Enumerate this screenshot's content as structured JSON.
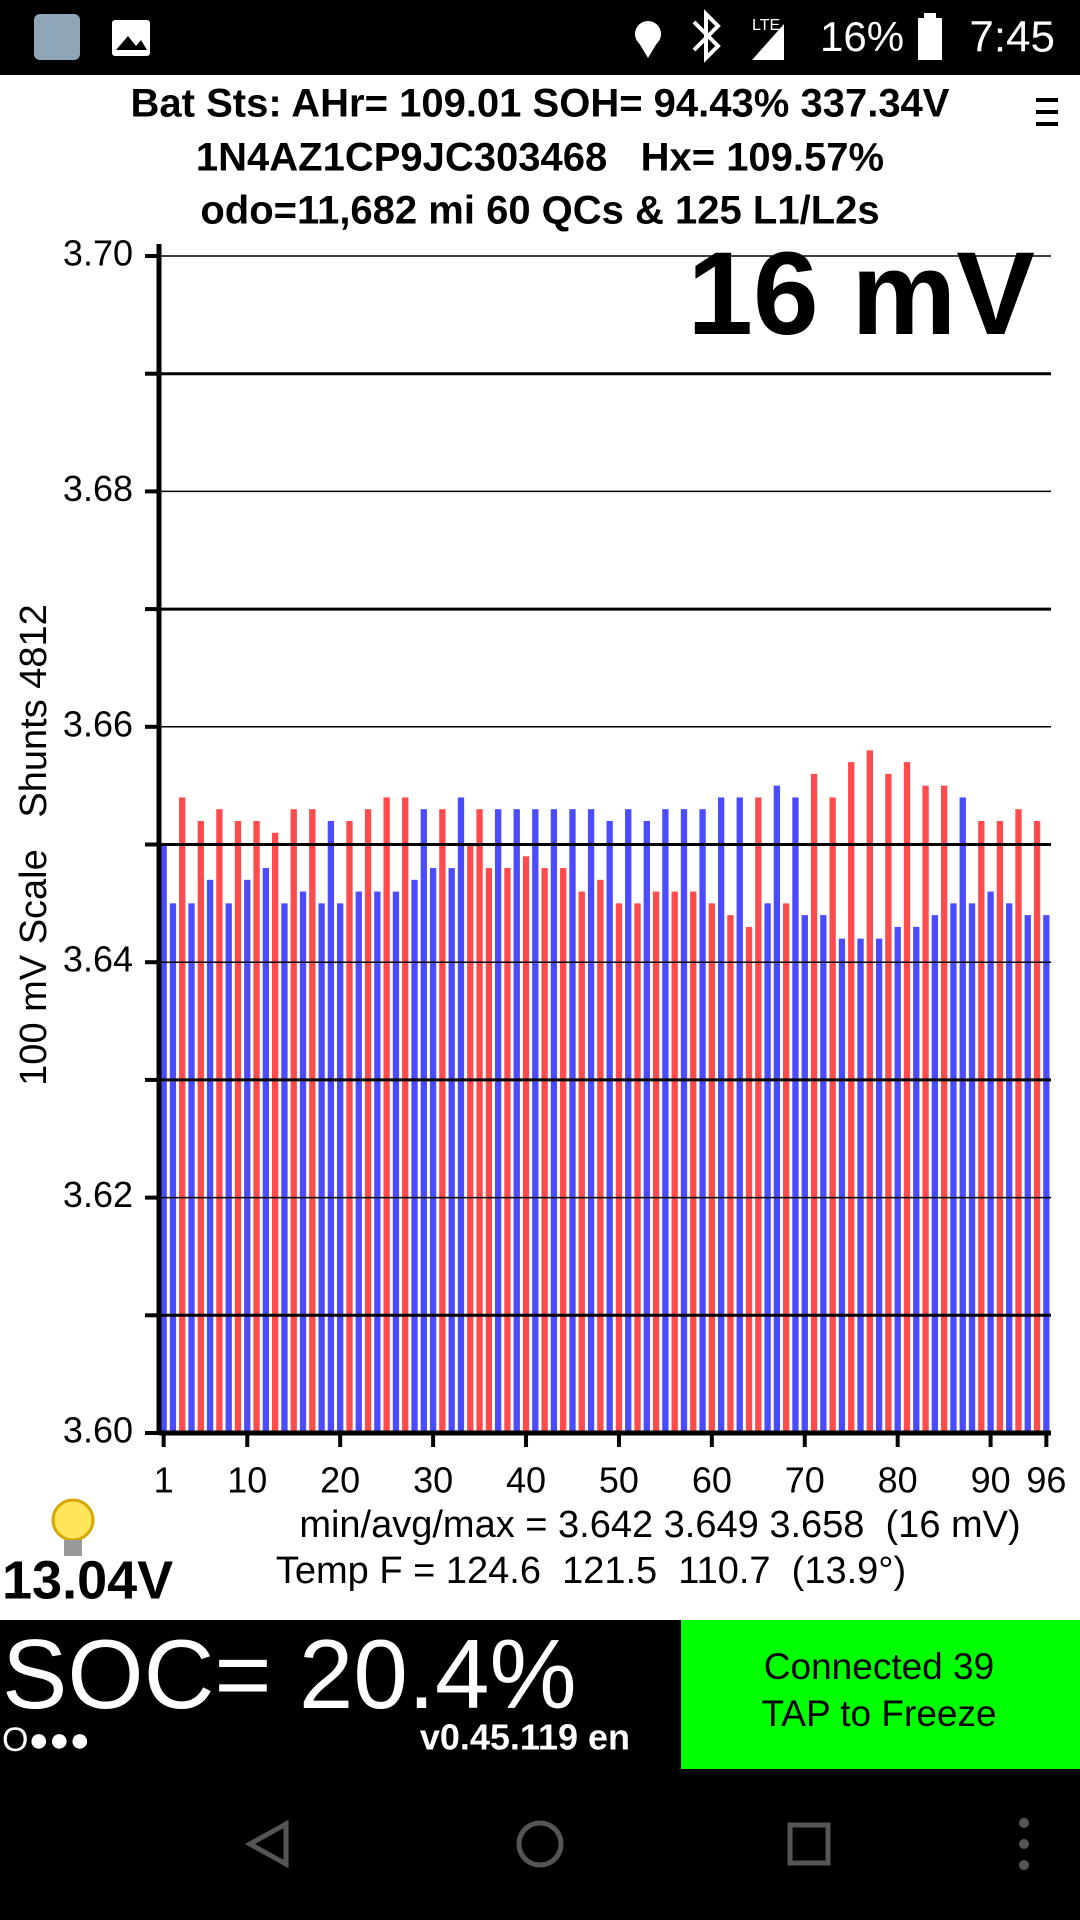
{
  "status_bar": {
    "network": "LTE",
    "battery": "16%",
    "time": "7:45"
  },
  "header": {
    "line1": "Bat Sts: AHr= 109.01 SOH= 94.43% 337.34V",
    "line2": "1N4AZ1CP9JC303468   Hx= 109.57%",
    "line3": "odo=11,682 mi 60 QCs & 125 L1/L2s"
  },
  "chart_data": {
    "type": "bar",
    "annotation": "16 mV",
    "y_label": "100 mV Scale   Shunts 4812",
    "categories": [
      "1",
      null,
      null,
      null,
      null,
      null,
      null,
      null,
      null,
      "10",
      null,
      null,
      null,
      null,
      null,
      null,
      null,
      null,
      null,
      "20",
      null,
      null,
      null,
      null,
      null,
      null,
      null,
      null,
      null,
      "30",
      null,
      null,
      null,
      null,
      null,
      null,
      null,
      null,
      null,
      "40",
      null,
      null,
      null,
      null,
      null,
      null,
      null,
      null,
      null,
      "50",
      null,
      null,
      null,
      null,
      null,
      null,
      null,
      null,
      null,
      "60",
      null,
      null,
      null,
      null,
      null,
      null,
      null,
      null,
      null,
      "70",
      null,
      null,
      null,
      null,
      null,
      null,
      null,
      null,
      null,
      "80",
      null,
      null,
      null,
      null,
      null,
      null,
      null,
      null,
      null,
      "90",
      null,
      null,
      null,
      null,
      null,
      "96"
    ],
    "values": [
      3.65,
      3.645,
      3.654,
      3.645,
      3.652,
      3.647,
      3.653,
      3.645,
      3.652,
      3.647,
      3.652,
      3.648,
      3.651,
      3.645,
      3.653,
      3.646,
      3.653,
      3.645,
      3.652,
      3.645,
      3.652,
      3.646,
      3.653,
      3.646,
      3.654,
      3.646,
      3.654,
      3.647,
      3.653,
      3.648,
      3.653,
      3.648,
      3.654,
      3.65,
      3.653,
      3.648,
      3.653,
      3.648,
      3.653,
      3.649,
      3.653,
      3.648,
      3.653,
      3.648,
      3.653,
      3.646,
      3.653,
      3.647,
      3.652,
      3.645,
      3.653,
      3.645,
      3.652,
      3.646,
      3.653,
      3.646,
      3.653,
      3.646,
      3.653,
      3.645,
      3.654,
      3.644,
      3.654,
      3.643,
      3.654,
      3.645,
      3.655,
      3.645,
      3.654,
      3.644,
      3.656,
      3.644,
      3.654,
      3.642,
      3.657,
      3.642,
      3.658,
      3.642,
      3.656,
      3.643,
      3.657,
      3.643,
      3.655,
      3.644,
      3.655,
      3.645,
      3.654,
      3.645,
      3.652,
      3.646,
      3.652,
      3.645,
      3.653,
      3.644,
      3.652,
      3.644
    ],
    "colors": [
      "#4b4bff",
      "#4b4bff",
      "#ff4b4b",
      "#4b4bff",
      "#ff4b4b",
      "#4b4bff",
      "#ff4b4b",
      "#4b4bff",
      "#ff4b4b",
      "#4b4bff",
      "#ff4b4b",
      "#4b4bff",
      "#ff4b4b",
      "#4b4bff",
      "#ff4b4b",
      "#4b4bff",
      "#ff4b4b",
      "#4b4bff",
      "#4b4bff",
      "#4b4bff",
      "#ff4b4b",
      "#4b4bff",
      "#ff4b4b",
      "#4b4bff",
      "#ff4b4b",
      "#4b4bff",
      "#ff4b4b",
      "#4b4bff",
      "#4b4bff",
      "#4b4bff",
      "#ff4b4b",
      "#4b4bff",
      "#4b4bff",
      "#ff4b4b",
      "#ff4b4b",
      "#ff4b4b",
      "#4b4bff",
      "#ff4b4b",
      "#4b4bff",
      "#ff4b4b",
      "#4b4bff",
      "#ff4b4b",
      "#4b4bff",
      "#ff4b4b",
      "#4b4bff",
      "#ff4b4b",
      "#4b4bff",
      "#ff4b4b",
      "#4b4bff",
      "#ff4b4b",
      "#4b4bff",
      "#ff4b4b",
      "#4b4bff",
      "#ff4b4b",
      "#4b4bff",
      "#ff4b4b",
      "#4b4bff",
      "#ff4b4b",
      "#4b4bff",
      "#ff4b4b",
      "#4b4bff",
      "#ff4b4b",
      "#4b4bff",
      "#ff4b4b",
      "#ff4b4b",
      "#4b4bff",
      "#4b4bff",
      "#ff4b4b",
      "#4b4bff",
      "#4b4bff",
      "#ff4b4b",
      "#4b4bff",
      "#ff4b4b",
      "#4b4bff",
      "#ff4b4b",
      "#4b4bff",
      "#ff4b4b",
      "#4b4bff",
      "#ff4b4b",
      "#4b4bff",
      "#ff4b4b",
      "#4b4bff",
      "#ff4b4b",
      "#4b4bff",
      "#ff4b4b",
      "#4b4bff",
      "#4b4bff",
      "#4b4bff",
      "#ff4b4b",
      "#4b4bff",
      "#ff4b4b",
      "#4b4bff",
      "#ff4b4b",
      "#4b4bff",
      "#ff4b4b",
      "#4b4bff"
    ],
    "ylim": [
      3.6,
      3.7
    ],
    "yticks": [
      {
        "value": 3.6,
        "label": "3.60"
      },
      3.62,
      3.64,
      3.66,
      3.68,
      {
        "value": 3.7,
        "label": "3.70"
      }
    ],
    "minor_yticks": [
      3.61,
      3.63,
      3.65,
      3.67,
      3.69
    ],
    "grid": true
  },
  "stats": {
    "line1": "min/avg/max = 3.642 3.649 3.658  (16 mV)",
    "line2": "Temp F = 124.6  121.5  110.7  (13.9°)"
  },
  "footer": {
    "voltage": "13.04V",
    "soc": "SOC= 20.4%",
    "dots": "O●●●",
    "version": "v0.45.119 en",
    "button_line1": "Connected 39",
    "button_line2": "TAP to Freeze"
  }
}
